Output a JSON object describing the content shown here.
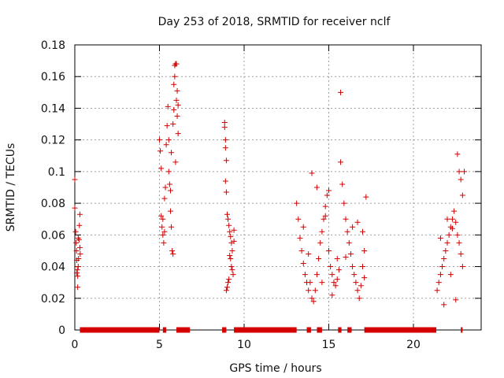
{
  "chart_data": {
    "type": "scatter",
    "title": "Day 253 of 2018, SRMTID for receiver nclf",
    "xlabel": "GPS time / hours",
    "ylabel": "SRMTID / TECUs",
    "xlim": [
      0,
      24
    ],
    "ylim": [
      0,
      0.18
    ],
    "xticks": [
      0,
      5,
      10,
      15,
      20
    ],
    "xtick_labels": [
      "0",
      "5",
      "10",
      "15",
      "20"
    ],
    "yticks": [
      0,
      0.02,
      0.04,
      0.06,
      0.08,
      0.1,
      0.12,
      0.14,
      0.16,
      0.18
    ],
    "ytick_labels": [
      "0",
      "0.02",
      "0.04",
      "0.06",
      "0.08",
      "0.1",
      "0.12",
      "0.14",
      "0.16",
      "0.18"
    ],
    "grid": true,
    "marker": "+",
    "color": "#d40000",
    "series": [
      {
        "name": "SRMTID",
        "points": [
          [
            0.0,
            0.095
          ],
          [
            0.0,
            0.077
          ],
          [
            0.05,
            0.062
          ],
          [
            0.08,
            0.055
          ],
          [
            0.1,
            0.05
          ],
          [
            0.12,
            0.044
          ],
          [
            0.15,
            0.038
          ],
          [
            0.17,
            0.034
          ],
          [
            0.2,
            0.04
          ],
          [
            0.22,
            0.045
          ],
          [
            0.25,
            0.057
          ],
          [
            0.27,
            0.066
          ],
          [
            0.3,
            0.073
          ],
          [
            0.3,
            0.052
          ],
          [
            0.32,
            0.048
          ],
          [
            0.17,
            0.027
          ],
          [
            0.12,
            0.036
          ],
          [
            0.2,
            0.058
          ],
          [
            5.0,
            0.12
          ],
          [
            5.05,
            0.113
          ],
          [
            5.1,
            0.102
          ],
          [
            5.1,
            0.072
          ],
          [
            5.15,
            0.065
          ],
          [
            5.2,
            0.06
          ],
          [
            5.25,
            0.055
          ],
          [
            5.3,
            0.083
          ],
          [
            5.35,
            0.09
          ],
          [
            5.4,
            0.117
          ],
          [
            5.45,
            0.129
          ],
          [
            5.5,
            0.141
          ],
          [
            5.55,
            0.1
          ],
          [
            5.6,
            0.092
          ],
          [
            5.65,
            0.088
          ],
          [
            5.65,
            0.075
          ],
          [
            5.7,
            0.065
          ],
          [
            5.75,
            0.05
          ],
          [
            5.8,
            0.048
          ],
          [
            5.8,
            0.13
          ],
          [
            5.85,
            0.139
          ],
          [
            5.85,
            0.155
          ],
          [
            5.9,
            0.16
          ],
          [
            5.9,
            0.167
          ],
          [
            5.95,
            0.168
          ],
          [
            6.0,
            0.168
          ],
          [
            6.0,
            0.145
          ],
          [
            6.05,
            0.151
          ],
          [
            6.05,
            0.135
          ],
          [
            6.1,
            0.142
          ],
          [
            6.1,
            0.124
          ],
          [
            5.55,
            0.12
          ],
          [
            5.7,
            0.112
          ],
          [
            5.95,
            0.106
          ],
          [
            5.2,
            0.07
          ],
          [
            5.3,
            0.062
          ],
          [
            8.85,
            0.131
          ],
          [
            8.85,
            0.128
          ],
          [
            8.9,
            0.12
          ],
          [
            8.9,
            0.115
          ],
          [
            8.95,
            0.107
          ],
          [
            8.9,
            0.094
          ],
          [
            8.95,
            0.087
          ],
          [
            9.0,
            0.073
          ],
          [
            9.05,
            0.07
          ],
          [
            9.1,
            0.066
          ],
          [
            9.15,
            0.062
          ],
          [
            9.2,
            0.059
          ],
          [
            9.25,
            0.055
          ],
          [
            9.3,
            0.05
          ],
          [
            9.2,
            0.045
          ],
          [
            9.25,
            0.04
          ],
          [
            9.3,
            0.038
          ],
          [
            9.35,
            0.035
          ],
          [
            9.1,
            0.032
          ],
          [
            9.05,
            0.03
          ],
          [
            8.95,
            0.025
          ],
          [
            9.0,
            0.027
          ],
          [
            9.4,
            0.063
          ],
          [
            9.4,
            0.056
          ],
          [
            9.15,
            0.047
          ],
          [
            13.1,
            0.08
          ],
          [
            13.2,
            0.07
          ],
          [
            13.3,
            0.058
          ],
          [
            13.4,
            0.05
          ],
          [
            13.5,
            0.042
          ],
          [
            13.6,
            0.035
          ],
          [
            13.7,
            0.03
          ],
          [
            13.8,
            0.025
          ],
          [
            13.9,
            0.03
          ],
          [
            14.0,
            0.02
          ],
          [
            14.1,
            0.018
          ],
          [
            14.2,
            0.025
          ],
          [
            14.3,
            0.035
          ],
          [
            14.4,
            0.045
          ],
          [
            14.5,
            0.055
          ],
          [
            14.6,
            0.062
          ],
          [
            14.7,
            0.07
          ],
          [
            14.8,
            0.078
          ],
          [
            14.9,
            0.085
          ],
          [
            15.0,
            0.05
          ],
          [
            15.1,
            0.04
          ],
          [
            15.2,
            0.035
          ],
          [
            15.3,
            0.03
          ],
          [
            15.4,
            0.028
          ],
          [
            15.5,
            0.032
          ],
          [
            15.6,
            0.038
          ],
          [
            15.7,
            0.15
          ],
          [
            15.7,
            0.106
          ],
          [
            15.8,
            0.092
          ],
          [
            15.9,
            0.08
          ],
          [
            16.0,
            0.07
          ],
          [
            16.1,
            0.062
          ],
          [
            16.2,
            0.055
          ],
          [
            16.3,
            0.048
          ],
          [
            16.4,
            0.04
          ],
          [
            16.5,
            0.035
          ],
          [
            16.6,
            0.03
          ],
          [
            16.7,
            0.025
          ],
          [
            16.8,
            0.02
          ],
          [
            16.9,
            0.028
          ],
          [
            17.0,
            0.04
          ],
          [
            17.1,
            0.05
          ],
          [
            17.2,
            0.084
          ],
          [
            14.0,
            0.099
          ],
          [
            14.3,
            0.09
          ],
          [
            14.8,
            0.072
          ],
          [
            15.0,
            0.088
          ],
          [
            13.5,
            0.065
          ],
          [
            13.8,
            0.048
          ],
          [
            14.6,
            0.03
          ],
          [
            15.2,
            0.022
          ],
          [
            15.5,
            0.045
          ],
          [
            16.0,
            0.046
          ],
          [
            16.4,
            0.065
          ],
          [
            16.7,
            0.068
          ],
          [
            17.0,
            0.062
          ],
          [
            17.1,
            0.033
          ],
          [
            21.4,
            0.025
          ],
          [
            21.5,
            0.03
          ],
          [
            21.6,
            0.035
          ],
          [
            21.7,
            0.04
          ],
          [
            21.8,
            0.045
          ],
          [
            21.9,
            0.05
          ],
          [
            22.0,
            0.055
          ],
          [
            22.1,
            0.06
          ],
          [
            22.2,
            0.065
          ],
          [
            22.3,
            0.07
          ],
          [
            22.4,
            0.075
          ],
          [
            22.5,
            0.068
          ],
          [
            22.6,
            0.06
          ],
          [
            22.7,
            0.055
          ],
          [
            22.8,
            0.048
          ],
          [
            22.9,
            0.04
          ],
          [
            22.6,
            0.111
          ],
          [
            22.7,
            0.1
          ],
          [
            22.8,
            0.095
          ],
          [
            22.9,
            0.085
          ],
          [
            23.0,
            0.1
          ],
          [
            21.8,
            0.016
          ],
          [
            22.5,
            0.019
          ],
          [
            21.6,
            0.058
          ],
          [
            22.0,
            0.07
          ],
          [
            22.3,
            0.064
          ],
          [
            22.2,
            0.035
          ]
        ]
      }
    ],
    "bars_at_zero": [
      [
        0.3,
        5.0
      ],
      [
        5.2,
        5.4
      ],
      [
        6.0,
        6.8
      ],
      [
        8.7,
        8.95
      ],
      [
        9.4,
        13.1
      ],
      [
        13.7,
        13.95
      ],
      [
        14.3,
        14.6
      ],
      [
        15.55,
        15.75
      ],
      [
        16.1,
        16.35
      ],
      [
        17.1,
        21.35
      ],
      [
        22.8,
        22.9
      ]
    ]
  }
}
